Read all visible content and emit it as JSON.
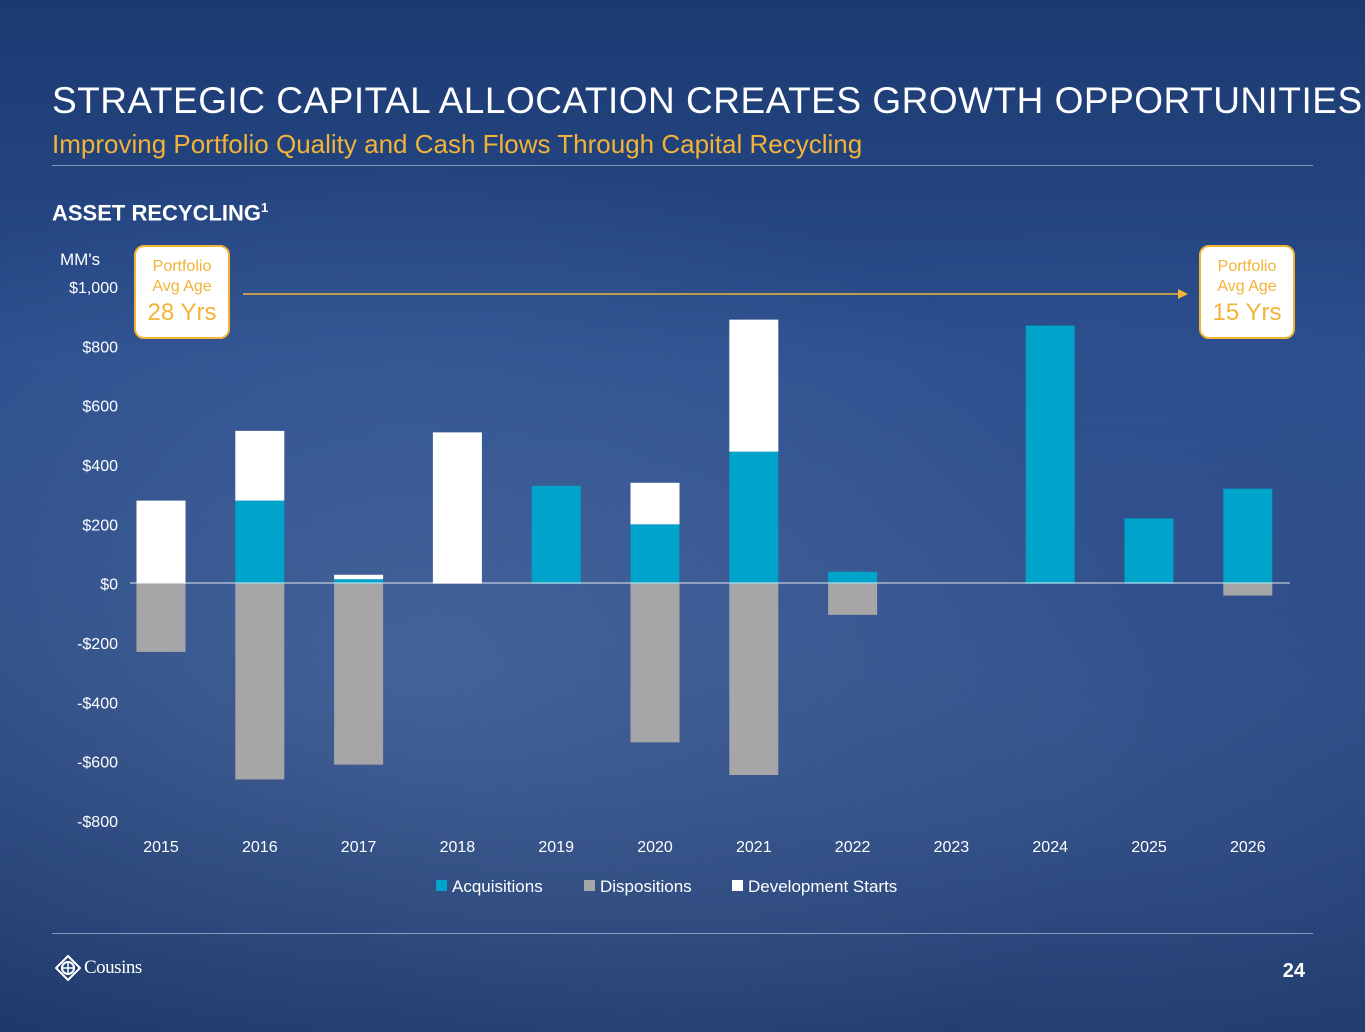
{
  "header": {
    "title": "STRATEGIC CAPITAL ALLOCATION CREATES GROWTH OPPORTUNITIES",
    "subtitle": "Improving Portfolio Quality and Cash Flows Through Capital Recycling",
    "section_label": "ASSET RECYCLING",
    "footnote_marker": "1"
  },
  "callouts": {
    "left": {
      "line1": "Portfolio",
      "line2": "Avg Age",
      "value": "28 Yrs"
    },
    "right": {
      "line1": "Portfolio",
      "line2": "Avg Age",
      "value": "15 Yrs"
    }
  },
  "colors": {
    "acquisitions": "#00a3c9",
    "dispositions": "#a6a6a8",
    "development_starts": "#ffffff",
    "accent": "#f2b337"
  },
  "chart_data": {
    "type": "bar",
    "stacked": true,
    "ylabel": "MM's",
    "ylim": [
      -800,
      1000
    ],
    "ytick_values": [
      1000,
      800,
      600,
      400,
      200,
      0,
      -200,
      -400,
      -600,
      -800
    ],
    "ytick_labels": [
      "$1,000",
      "$800",
      "$600",
      "$400",
      "$200",
      "$0",
      "-$200",
      "-$400",
      "-$600",
      "-$800"
    ],
    "categories": [
      "2015",
      "2016",
      "2017",
      "2018",
      "2019",
      "2020",
      "2021",
      "2022",
      "2023",
      "2024",
      "2025",
      "2026"
    ],
    "series": [
      {
        "name": "Acquisitions",
        "values": [
          0,
          280,
          15,
          0,
          330,
          200,
          445,
          40,
          0,
          870,
          220,
          320
        ]
      },
      {
        "name": "Dispositions",
        "values": [
          -230,
          -660,
          -610,
          0,
          0,
          -535,
          -645,
          -105,
          0,
          0,
          0,
          -40
        ]
      },
      {
        "name": "Development Starts",
        "values": [
          280,
          235,
          15,
          510,
          0,
          140,
          445,
          0,
          0,
          0,
          0,
          0
        ]
      }
    ],
    "legend_position": "bottom",
    "grid": false
  },
  "footer": {
    "logo_text": "Cousins",
    "page_number": "24"
  }
}
